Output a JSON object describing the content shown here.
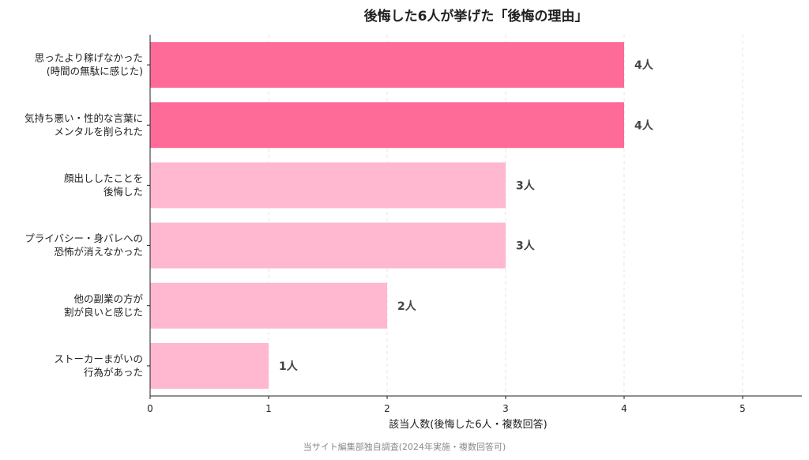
{
  "title": "後悔した6人が挙げた「後悔の理由」",
  "source": "当サイト編集部独自調査(2024年実施・複数回答可)",
  "colors": {
    "highlight": "#ff6b98",
    "normal": "#ffb8cf",
    "axis": "#222222",
    "grid": "#e6e6e6"
  },
  "chart_data": {
    "type": "bar",
    "orientation": "horizontal",
    "title": "後悔した6人が挙げた「後悔の理由」",
    "xlabel": "該当人数(後悔した6人・複数回答)",
    "ylabel": "",
    "xlim": [
      0,
      5.5
    ],
    "xticks": [
      0,
      1,
      2,
      3,
      4,
      5
    ],
    "grid": true,
    "categories": [
      [
        "思ったより稼げなかった",
        "(時間の無駄に感じた)"
      ],
      [
        "気持ち悪い・性的な言葉に",
        "メンタルを削られた"
      ],
      [
        "顔出ししたことを",
        "後悔した"
      ],
      [
        "プライバシー・身バレへの",
        "恐怖が消えなかった"
      ],
      [
        "他の副業の方が",
        "割が良いと感じた"
      ],
      [
        "ストーカーまがいの",
        "行為があった"
      ]
    ],
    "values": [
      4,
      4,
      3,
      3,
      2,
      1
    ],
    "value_labels": [
      "4人",
      "4人",
      "3人",
      "3人",
      "2人",
      "1人"
    ],
    "highlighted": [
      true,
      true,
      false,
      false,
      false,
      false
    ]
  }
}
